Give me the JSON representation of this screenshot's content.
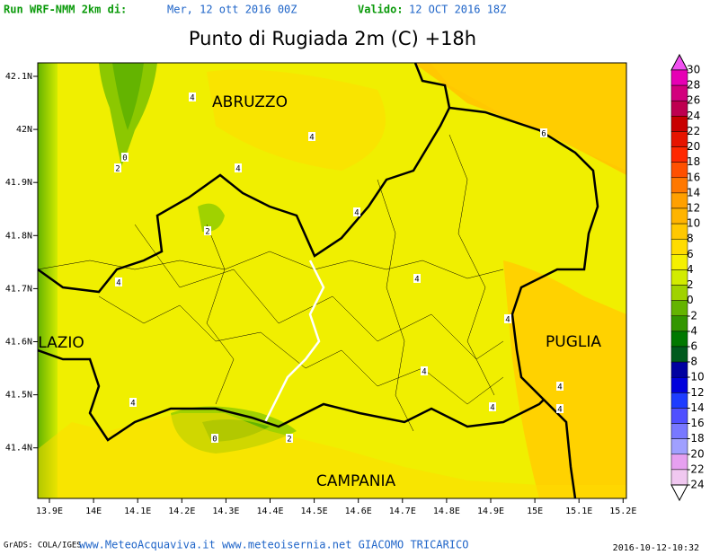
{
  "header": {
    "run_label": "Run WRF-NMM 2km di:",
    "run_date": "Mer, 12 ott 2016 00Z",
    "valid_label": "Valido:",
    "valid_date": "12 OCT 2016 18Z",
    "title": "Punto di Rugiada 2m (C) +18h"
  },
  "map": {
    "lon_labels": [
      "13.9E",
      "14E",
      "14.1E",
      "14.2E",
      "14.3E",
      "14.4E",
      "14.5E",
      "14.6E",
      "14.7E",
      "14.8E",
      "14.9E",
      "15E",
      "15.1E",
      "15.2E"
    ],
    "lat_labels": [
      "42.1N",
      "42N",
      "41.9N",
      "41.8N",
      "41.7N",
      "41.6N",
      "41.5N",
      "41.4N"
    ],
    "regions": [
      "ABRUZZO",
      "LAZIO",
      "PUGLIA",
      "CAMPANIA"
    ],
    "contour_labels": [
      4,
      4,
      4,
      0,
      2,
      6,
      4,
      2,
      4,
      4,
      4,
      4,
      4,
      4,
      4,
      4,
      0,
      2
    ]
  },
  "colorbar": {
    "levels": [
      30,
      28,
      26,
      24,
      22,
      20,
      18,
      16,
      14,
      12,
      10,
      8,
      6,
      4,
      2,
      0,
      -2,
      -4,
      -6,
      -8,
      -10,
      -12,
      -14,
      -16,
      -18,
      -20,
      -22,
      -24
    ],
    "colors": [
      "#f050f0",
      "#e600b4",
      "#d2007d",
      "#be0050",
      "#c80000",
      "#e61400",
      "#ff2800",
      "#ff5000",
      "#ff7800",
      "#ffa000",
      "#ffb400",
      "#ffc800",
      "#ffdc00",
      "#f5f000",
      "#d2eb00",
      "#a0d200",
      "#64b400",
      "#329600",
      "#007800",
      "#005a1e",
      "#0000a0",
      "#0000dc",
      "#1e3cff",
      "#5050ff",
      "#7878ff",
      "#a0a0ff",
      "#e6a0f0",
      "#f0c8f0",
      "#ffffff"
    ]
  },
  "footer": {
    "credit": "GrADS: COLA/IGES",
    "sites": "www.MeteoAcquaviva.it www.meteoisernia.net GIACOMO TRICARICO",
    "timestamp": "2016-10-12-10:32"
  }
}
